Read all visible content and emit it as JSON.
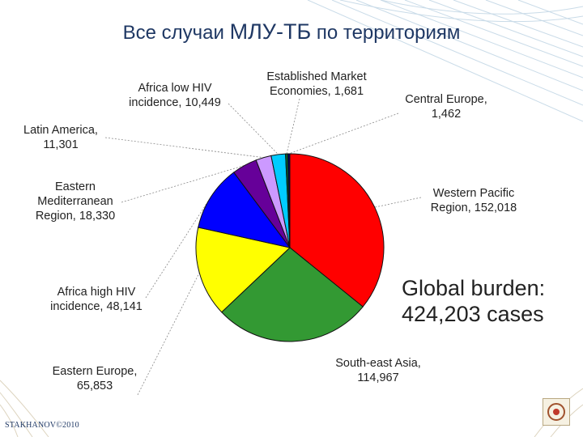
{
  "title_part1": "Все случаи ",
  "title_part2": "МЛУ-ТБ",
  "title_part3": " по территориям",
  "annotation": "Global burden:\n424,203 cases",
  "footer": "STAKHANOV©2010",
  "chart_data": {
    "type": "pie",
    "title": "Все случаи МЛУ-ТБ по территориям",
    "total_label": "Global burden: 424,203 cases",
    "start_angle_deg": 0,
    "direction": "clockwise",
    "slices": [
      {
        "name": "Western Pacific Region",
        "value": 152018,
        "label": "Western Pacific\nRegion, 152,018",
        "color": "#ff0000"
      },
      {
        "name": "South-east Asia",
        "value": 114967,
        "label": "South-east Asia,\n114,967",
        "color": "#339933"
      },
      {
        "name": "Eastern Europe",
        "value": 65853,
        "label": "Eastern Europe,\n65,853",
        "color": "#ffff00"
      },
      {
        "name": "Africa high HIV incidence",
        "value": 48141,
        "label": "Africa high HIV\nincidence, 48,141",
        "color": "#0000ff"
      },
      {
        "name": "Eastern Mediterranean Region",
        "value": 18330,
        "label": "Eastern\nMediterranean\nRegion, 18,330",
        "color": "#660099"
      },
      {
        "name": "Latin America",
        "value": 11301,
        "label": "Latin America,\n11,301",
        "color": "#cc99ff"
      },
      {
        "name": "Africa low HIV incidence",
        "value": 10449,
        "label": "Africa low HIV\nincidence, 10,449",
        "color": "#00ccff"
      },
      {
        "name": "Established Market Economies",
        "value": 1681,
        "label": "Established Market\nEconomies, 1,681",
        "color": "#006633"
      },
      {
        "name": "Central Europe",
        "value": 1462,
        "label": "Central Europe,\n1,462",
        "color": "#000066"
      }
    ]
  }
}
